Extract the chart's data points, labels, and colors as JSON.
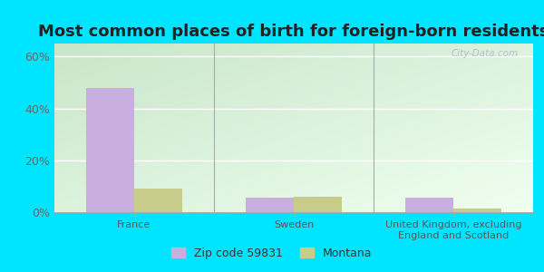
{
  "title": "Most common places of birth for foreign-born residents",
  "categories": [
    "France",
    "Sweden",
    "United Kingdom, excluding\nEngland and Scotland"
  ],
  "zip_values": [
    48.0,
    5.5,
    5.5
  ],
  "montana_values": [
    9.0,
    5.8,
    1.5
  ],
  "zip_color": "#c9aee0",
  "montana_color": "#c8cc8a",
  "zip_label": "Zip code 59831",
  "montana_label": "Montana",
  "ylim": [
    0,
    65
  ],
  "yticks": [
    0,
    20,
    40,
    60
  ],
  "ytick_labels": [
    "0%",
    "20%",
    "40%",
    "60%"
  ],
  "bg_topleft": "#b2dfdb",
  "bg_bottomright": "#f5fff5",
  "outer_bg": "#00e5ff",
  "bar_width": 0.3,
  "title_fontsize": 13,
  "axis_fontsize": 9,
  "legend_fontsize": 9,
  "watermark": "City-Data.com"
}
